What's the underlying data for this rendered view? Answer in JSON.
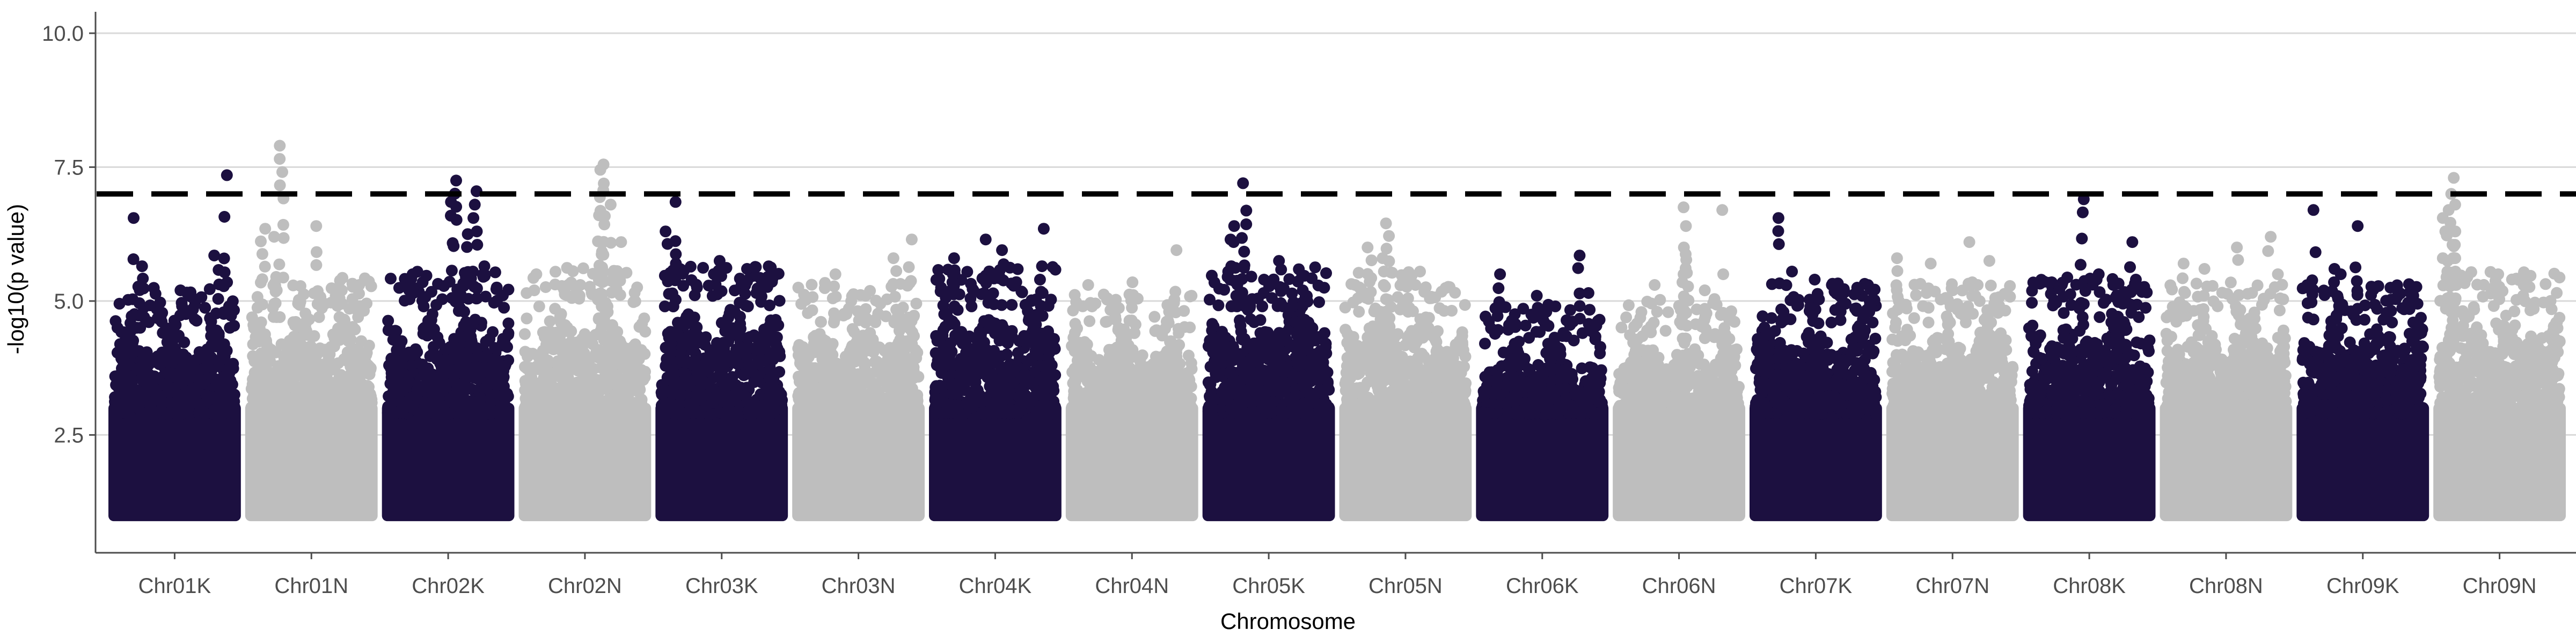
{
  "chart_data": {
    "type": "scatter",
    "title": "",
    "xlabel": "Chromosome",
    "ylabel": "-log10(p value)",
    "ylim": [
      0.3,
      10.4
    ],
    "y_ticks": [
      2.5,
      5.0,
      7.5,
      10.0
    ],
    "y_tick_labels": [
      "2.5",
      "5.0",
      "7.5",
      "10.0"
    ],
    "grid": "horizontal major only",
    "legend": "none",
    "significance_threshold": {
      "value": 7.0,
      "style": "dashed",
      "color": "#000000"
    },
    "colors": {
      "odd_chromosomes": "#1c1040",
      "even_chromosomes": "#bebebe",
      "grid": "#d9d9d9",
      "axis": "#4d4d4d"
    },
    "min_plotted_value": 1.0,
    "categories": [
      "Chr01K",
      "Chr01N",
      "Chr02K",
      "Chr02N",
      "Chr03K",
      "Chr03N",
      "Chr04K",
      "Chr04N",
      "Chr05K",
      "Chr05N",
      "Chr06K",
      "Chr06N",
      "Chr07K",
      "Chr07N",
      "Chr08K",
      "Chr08N",
      "Chr09K",
      "Chr09N"
    ],
    "series": [
      {
        "chromosome": "Chr01K",
        "color": "#1c1040",
        "dense_top": 4.5,
        "peaks": [
          [
            0.92,
            7.35
          ],
          [
            0.18,
            6.55
          ],
          [
            0.22,
            5.65
          ],
          [
            0.85,
            5.85
          ],
          [
            0.06,
            4.95
          ],
          [
            0.55,
            5.2
          ],
          [
            0.95,
            5.35
          ]
        ]
      },
      {
        "chromosome": "Chr01N",
        "color": "#bebebe",
        "dense_top": 4.7,
        "peaks": [
          [
            0.25,
            7.9
          ],
          [
            0.1,
            6.35
          ],
          [
            0.55,
            6.4
          ],
          [
            0.2,
            6.2
          ],
          [
            0.75,
            5.2
          ],
          [
            0.9,
            5.3
          ]
        ]
      },
      {
        "chromosome": "Chr02K",
        "color": "#1c1040",
        "dense_top": 4.8,
        "peaks": [
          [
            0.55,
            7.25
          ],
          [
            0.72,
            7.05
          ],
          [
            0.53,
            6.85
          ],
          [
            0.65,
            6.25
          ],
          [
            0.8,
            5.65
          ],
          [
            0.2,
            5.5
          ],
          [
            0.3,
            5.35
          ]
        ]
      },
      {
        "chromosome": "Chr02N",
        "color": "#bebebe",
        "dense_top": 4.9,
        "peaks": [
          [
            0.65,
            7.55
          ],
          [
            0.64,
            7.45
          ],
          [
            0.63,
            6.6
          ],
          [
            0.7,
            6.8
          ],
          [
            0.8,
            6.1
          ],
          [
            0.1,
            5.5
          ],
          [
            0.45,
            5.3
          ]
        ]
      },
      {
        "chromosome": "Chr03K",
        "color": "#1c1040",
        "dense_top": 4.9,
        "peaks": [
          [
            0.1,
            6.85
          ],
          [
            0.05,
            6.3
          ],
          [
            0.12,
            5.7
          ],
          [
            0.5,
            5.75
          ],
          [
            0.7,
            5.6
          ],
          [
            0.88,
            5.45
          ]
        ]
      },
      {
        "chromosome": "Chr03N",
        "color": "#bebebe",
        "dense_top": 4.6,
        "peaks": [
          [
            0.92,
            6.15
          ],
          [
            0.8,
            5.8
          ],
          [
            0.3,
            5.5
          ],
          [
            0.55,
            5.1
          ]
        ]
      },
      {
        "chromosome": "Chr04K",
        "color": "#1c1040",
        "dense_top": 4.9,
        "peaks": [
          [
            0.92,
            6.35
          ],
          [
            0.4,
            6.15
          ],
          [
            0.15,
            5.8
          ],
          [
            0.55,
            5.95
          ],
          [
            0.88,
            5.65
          ],
          [
            0.3,
            5.2
          ]
        ]
      },
      {
        "chromosome": "Chr04N",
        "color": "#bebebe",
        "dense_top": 4.4,
        "peaks": [
          [
            0.88,
            5.95
          ],
          [
            0.5,
            5.35
          ],
          [
            0.15,
            5.3
          ],
          [
            0.3,
            5.05
          ]
        ]
      },
      {
        "chromosome": "Chr05K",
        "color": "#1c1040",
        "dense_top": 4.9,
        "peaks": [
          [
            0.3,
            7.2
          ],
          [
            0.2,
            6.4
          ],
          [
            0.22,
            6.1
          ],
          [
            0.6,
            5.75
          ],
          [
            0.45,
            5.4
          ],
          [
            0.8,
            5.2
          ]
        ]
      },
      {
        "chromosome": "Chr05N",
        "color": "#bebebe",
        "dense_top": 4.8,
        "peaks": [
          [
            0.35,
            6.45
          ],
          [
            0.2,
            6.0
          ],
          [
            0.3,
            5.8
          ],
          [
            0.5,
            5.5
          ],
          [
            0.6,
            5.55
          ],
          [
            0.1,
            5.3
          ]
        ]
      },
      {
        "chromosome": "Chr06K",
        "color": "#1c1040",
        "dense_top": 4.2,
        "peaks": [
          [
            0.8,
            5.85
          ],
          [
            0.15,
            5.5
          ],
          [
            0.45,
            5.1
          ],
          [
            0.6,
            4.9
          ],
          [
            0.9,
            5.15
          ]
        ]
      },
      {
        "chromosome": "Chr06N",
        "color": "#bebebe",
        "dense_top": 4.3,
        "peaks": [
          [
            0.55,
            6.75
          ],
          [
            0.54,
            6.4
          ],
          [
            0.56,
            6.0
          ],
          [
            0.55,
            5.5
          ],
          [
            0.85,
            6.7
          ],
          [
            0.3,
            5.3
          ],
          [
            0.7,
            5.2
          ]
        ]
      },
      {
        "chromosome": "Chr07K",
        "color": "#1c1040",
        "dense_top": 4.6,
        "peaks": [
          [
            0.2,
            6.55
          ],
          [
            0.3,
            5.55
          ],
          [
            0.5,
            5.4
          ],
          [
            0.65,
            5.3
          ],
          [
            0.85,
            5.25
          ],
          [
            0.95,
            5.0
          ]
        ]
      },
      {
        "chromosome": "Chr07N",
        "color": "#bebebe",
        "dense_top": 4.6,
        "peaks": [
          [
            0.65,
            6.1
          ],
          [
            0.05,
            5.8
          ],
          [
            0.3,
            5.7
          ],
          [
            0.8,
            5.75
          ],
          [
            0.5,
            5.2
          ]
        ]
      },
      {
        "chromosome": "Chr08K",
        "color": "#1c1040",
        "dense_top": 4.7,
        "peaks": [
          [
            0.45,
            6.9
          ],
          [
            0.85,
            6.1
          ],
          [
            0.6,
            5.5
          ],
          [
            0.9,
            5.4
          ],
          [
            0.2,
            5.35
          ],
          [
            0.7,
            5.3
          ]
        ]
      },
      {
        "chromosome": "Chr08N",
        "color": "#bebebe",
        "dense_top": 4.6,
        "peaks": [
          [
            0.85,
            6.2
          ],
          [
            0.6,
            6.0
          ],
          [
            0.15,
            5.7
          ],
          [
            0.3,
            5.6
          ],
          [
            0.95,
            5.5
          ]
        ]
      },
      {
        "chromosome": "Chr09K",
        "color": "#1c1040",
        "dense_top": 4.6,
        "peaks": [
          [
            0.1,
            6.7
          ],
          [
            0.45,
            6.4
          ],
          [
            0.25,
            5.6
          ],
          [
            0.3,
            5.5
          ],
          [
            0.75,
            5.25
          ],
          [
            0.9,
            5.1
          ]
        ]
      },
      {
        "chromosome": "Chr09N",
        "color": "#bebebe",
        "dense_top": 4.8,
        "peaks": [
          [
            0.12,
            7.3
          ],
          [
            0.1,
            7.0
          ],
          [
            0.08,
            6.7
          ],
          [
            0.05,
            6.55
          ],
          [
            0.13,
            6.3
          ],
          [
            0.15,
            5.8
          ],
          [
            0.5,
            5.5
          ],
          [
            0.7,
            5.4
          ]
        ]
      }
    ]
  }
}
